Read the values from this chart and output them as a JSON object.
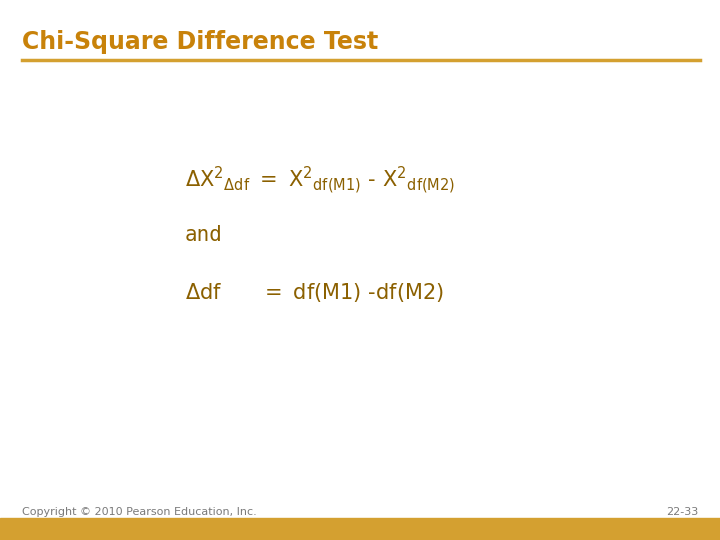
{
  "title": "Chi-Square Difference Test",
  "title_color": "#C8820A",
  "title_fontsize": 17,
  "line_color": "#D4A030",
  "bg_color": "#FFFFFF",
  "text_color": "#8B6000",
  "footer_text_color": "#7A7A7A",
  "footer_bar_color": "#D4A030",
  "copyright_text": "Copyright © 2010 Pearson Education, Inc.",
  "page_number": "22-33"
}
